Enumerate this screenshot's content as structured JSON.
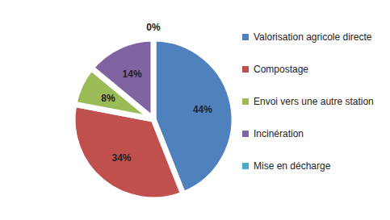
{
  "chart_data": {
    "type": "pie",
    "categories": [
      "Valorisation agricole directe",
      "Compostage",
      "Envoi vers une autre station",
      "Incinération",
      "Mise en décharge"
    ],
    "values": [
      44,
      34,
      8,
      14,
      0
    ],
    "value_labels": [
      "44%",
      "34%",
      "8%",
      "14%",
      "0%"
    ],
    "colors": [
      "#4f81bd",
      "#c0504d",
      "#9bbb59",
      "#8064a2",
      "#4bacc6"
    ],
    "data_labels": true,
    "legend": "right"
  }
}
